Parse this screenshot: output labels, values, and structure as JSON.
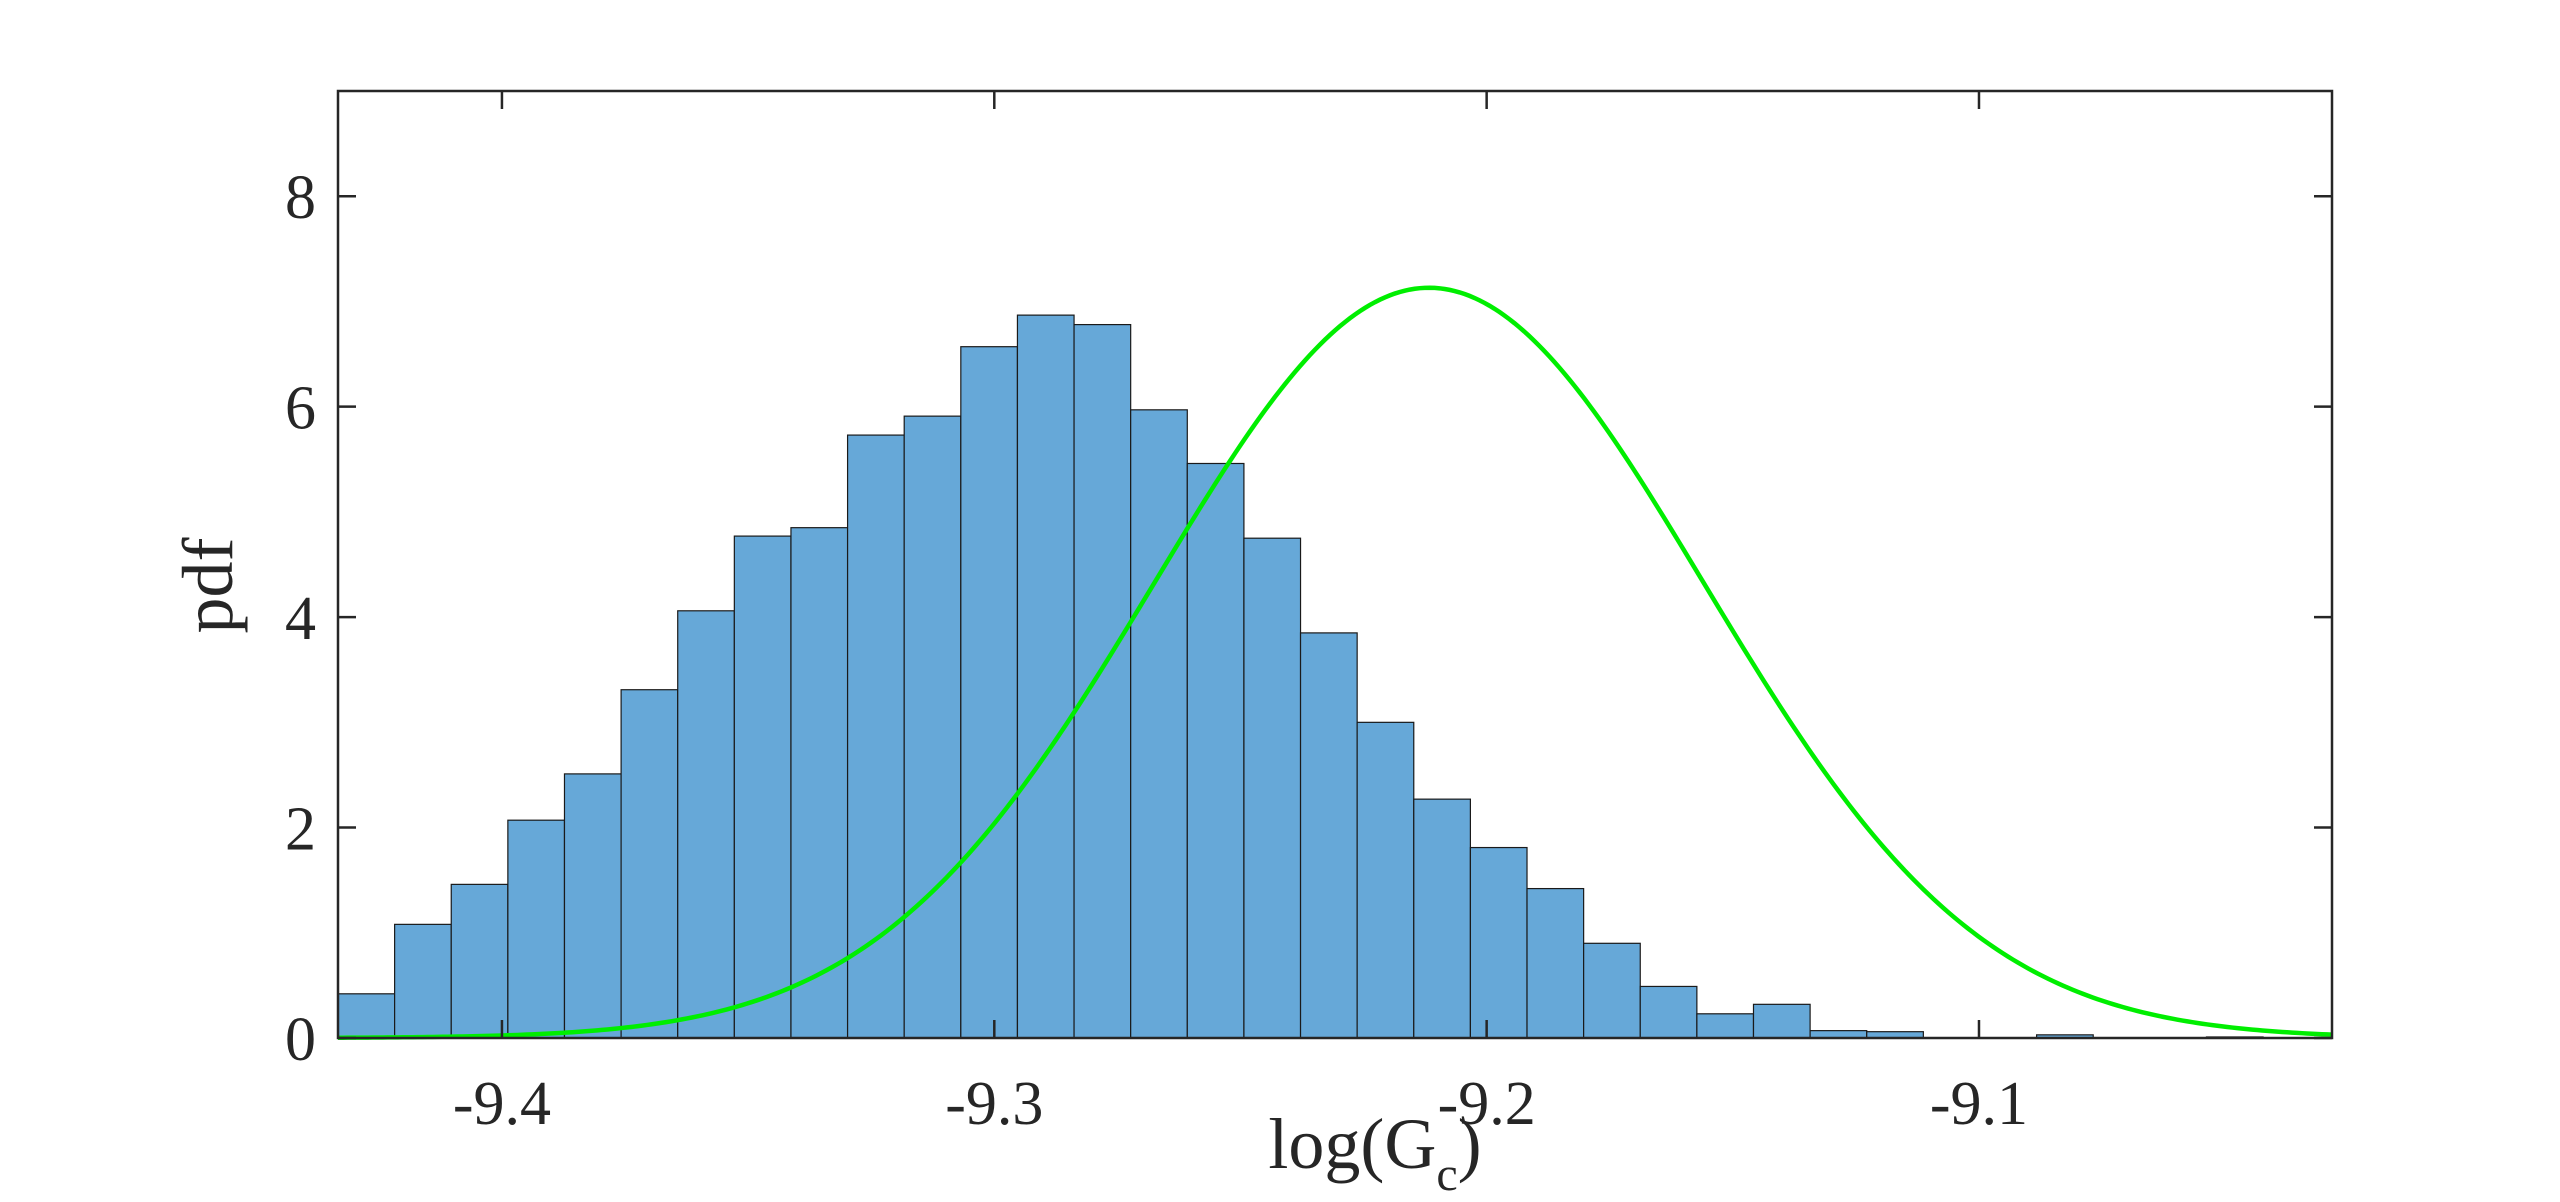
{
  "chart_data": {
    "type": "bar",
    "xlabel": "log(G",
    "xlabel_subscript": "c",
    "xlabel_close": ")",
    "ylabel": "pdf",
    "xlim": [
      -9.4333,
      -9.0283
    ],
    "ylim": [
      0,
      9
    ],
    "xticks": [
      -9.4,
      -9.3,
      -9.2,
      -9.1
    ],
    "xtick_labels": [
      "-9.4",
      "-9.3",
      "-9.2",
      "-9.1"
    ],
    "yticks": [
      0,
      2,
      4,
      6,
      8
    ],
    "ytick_labels": [
      "0",
      "2",
      "4",
      "6",
      "8"
    ],
    "grid": false,
    "bin_width": 0.0115,
    "bin_edges_start": -9.4333,
    "series": [
      {
        "kind": "histogram",
        "color": "#66A8D8",
        "edge_color": "#1a1a1a",
        "values": [
          0.42,
          1.08,
          1.46,
          2.07,
          2.51,
          3.31,
          4.06,
          4.77,
          4.85,
          5.73,
          5.91,
          6.57,
          6.87,
          6.78,
          5.97,
          5.46,
          4.75,
          3.85,
          3.0,
          2.27,
          1.81,
          1.42,
          0.9,
          0.49,
          0.23,
          0.32,
          0.07,
          0.06,
          0.0,
          0.0,
          0.03,
          0.0,
          0.0,
          0.01,
          0.0
        ]
      },
      {
        "kind": "curve",
        "color": "#00EE00",
        "mean": -9.2117,
        "peak": 7.13,
        "std": 0.0558
      }
    ]
  }
}
